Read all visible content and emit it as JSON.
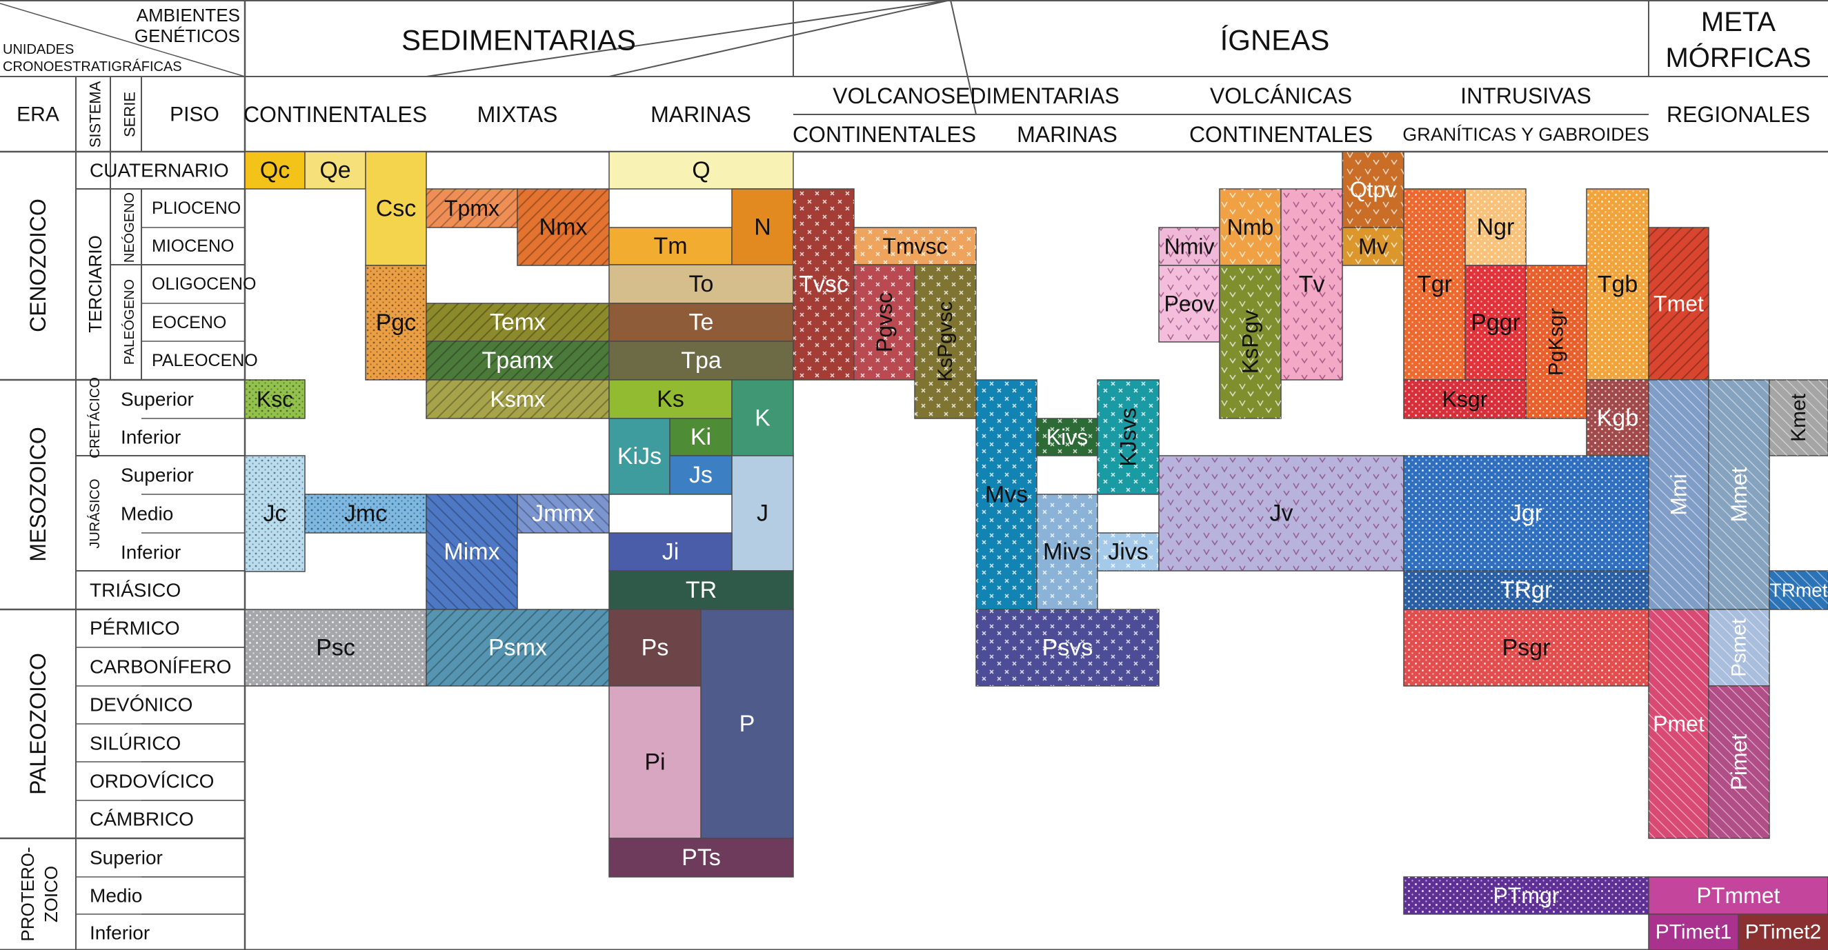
{
  "header": {
    "corner_top": [
      "AMBIENTES",
      "GENÉTICOS"
    ],
    "corner_bottom": [
      "UNIDADES",
      "CRONOESTRATIGRÁFICAS"
    ],
    "era_label": "ERA",
    "sistema_label": "SISTEMA",
    "serie_label": "SERIE",
    "piso_label": "PISO"
  },
  "groups": {
    "sedimentarias": "SEDIMENTARIAS",
    "igneas": "ÍGNEAS",
    "metamorficas": [
      "META",
      "MÓRFICAS"
    ]
  },
  "subgroups": {
    "continentales": "CONTINENTALES",
    "mixtas": "MIXTAS",
    "marinas": "MARINAS",
    "volcanosedimentarias": "VOLCANOSEDIMENTARIAS",
    "vs_continentales": "CONTINENTALES",
    "vs_marinas": "MARINAS",
    "volcanicas": "VOLCÁNICAS",
    "volc_continentales": "CONTINENTALES",
    "intrusivas": "INTRUSIVAS",
    "graniticas": "GRANÍTICAS Y GABROIDES",
    "regionales": "REGIONALES"
  },
  "eras": [
    "CENOZOICO",
    "MESOZOICO",
    "PALEOZOICO",
    "PROTERO-",
    "ZOICO"
  ],
  "systems": {
    "terciario": "TERCIARIO",
    "cretacico": "CRETÁCICO",
    "jurasico": "JURÁSICO",
    "neogeno": "NEÓGENO",
    "paleogeno": "PALEÓGENO"
  },
  "stages": [
    "CUATERNARIO",
    "PLIOCENO",
    "MIOCENO",
    "OLIGOCENO",
    "EOCENO",
    "PALEOCENO",
    "Superior",
    "Inferior",
    "Superior",
    "Medio",
    "Inferior",
    "TRIÁSICO",
    "PÉRMICO",
    "CARBONÍFERO",
    "DEVÓNICO",
    "SILÚRICO",
    "ORDOVÍCICO",
    "CÁMBRICO",
    "Superior",
    "Medio",
    "Inferior"
  ],
  "colors": {
    "Qc": "#f3c31a",
    "Qe": "#f6e07a",
    "Csc": "#f4d44d",
    "Pgc": "#eb9f45",
    "Ksc": "#93c14d",
    "Jc": "#b9dcef",
    "Jmc": "#7db8e2",
    "Psc": "#a5a7ab",
    "Tpmx": "#ef8f55",
    "Nmx": "#e3732e",
    "Temx": "#8c8a2a",
    "Tpamx": "#4b7a3a",
    "Ksmx": "#a6a34a",
    "Mimx": "#4e78c4",
    "Jmmx": "#7a95cf",
    "Psmx": "#5595b1",
    "Q": "#f8f3b4",
    "Tm": "#f2ac30",
    "N": "#e28a1f",
    "To": "#d5bd8c",
    "Te": "#8f5c3a",
    "Tpa": "#6c6b45",
    "Ks": "#93bb31",
    "K": "#3f9873",
    "Ki": "#4f8c36",
    "KiJs": "#3f9c9e",
    "Js": "#3d7fc3",
    "J": "#b5cde3",
    "Ji": "#4a5da9",
    "TR": "#2f5a4a",
    "Ps": "#6d4548",
    "P": "#4e5b8b",
    "Pi": "#d8a6c0",
    "PTs": "#6f3b5d",
    "Tvsc": "#a33d35",
    "Tmvsc": "#eea45d",
    "Pgvsc": "#b94a52",
    "KsPgvsc": "#7f7431",
    "Mvs": "#1284b3",
    "Kivs": "#2d6b36",
    "KJsvs": "#1a9aa3",
    "Mivs": "#8bb3d8",
    "Jivs": "#a5c9e9",
    "Psvs": "#4d4d97",
    "Qtpv": "#c96d27",
    "Nmiv": "#f0b9d8",
    "Nmb": "#f0a143",
    "Peov": "#f3bddb",
    "KsPgv": "#7f8f2d",
    "Tv": "#f3a8c6",
    "Mv": "#dc972c",
    "Jv": "#b7b3dd",
    "Tgr": "#ec6a2f",
    "Ngr": "#f8c27a",
    "Pggr": "#e0333a",
    "PgKsgr": "#e8602c",
    "Tgb": "#f1a43c",
    "Ksgr": "#d7303a",
    "Kgb": "#a04a4b",
    "Jgr": "#2f6fbd",
    "TRgr": "#2b5fa4",
    "Psgr": "#e24d4d",
    "PTmgr": "#5e3094",
    "Tmet": "#d9452f",
    "Mmi": "#7f9dc7",
    "Mmet": "#85a3bf",
    "Kmet": "#a5a5a5",
    "TRmet": "#2b73b7",
    "Psmet": "#a9bddd",
    "Pmet": "#d84a74",
    "Pimet": "#b14d87",
    "PTmmet": "#c4459c",
    "PTimet1": "#a8328d",
    "PTimet2": "#8a3030"
  },
  "units": [
    "Qc",
    "Qe",
    "Csc",
    "Pgc",
    "Ksc",
    "Jc",
    "Jmc",
    "Psc",
    "Tpmx",
    "Nmx",
    "Temx",
    "Tpamx",
    "Ksmx",
    "Mimx",
    "Jmmx",
    "Psmx",
    "Q",
    "Tm",
    "N",
    "To",
    "Te",
    "Tpa",
    "Ks",
    "K",
    "Ki",
    "KiJs",
    "Js",
    "J",
    "Ji",
    "TR",
    "Ps",
    "P",
    "Pi",
    "PTs",
    "Tvsc",
    "Tmvsc",
    "Pgvsc",
    "KsPgvsc",
    "Mvs",
    "Kivs",
    "KJsvs",
    "Mivs",
    "Jivs",
    "Psvs",
    "Qtpv",
    "Nmiv",
    "Nmb",
    "Peov",
    "KsPgv",
    "Tv",
    "Mv",
    "Jv",
    "Tgr",
    "Ngr",
    "Pggr",
    "PgKsgr",
    "Tgb",
    "Ksgr",
    "Kgb",
    "Jgr",
    "TRgr",
    "Psgr",
    "PTmgr",
    "Tmet",
    "Mmi",
    "Mmet",
    "Kmet",
    "TRmet",
    "Psmet",
    "Pmet",
    "Pimet",
    "PTmmet",
    "PTimet1",
    "PTimet2"
  ]
}
